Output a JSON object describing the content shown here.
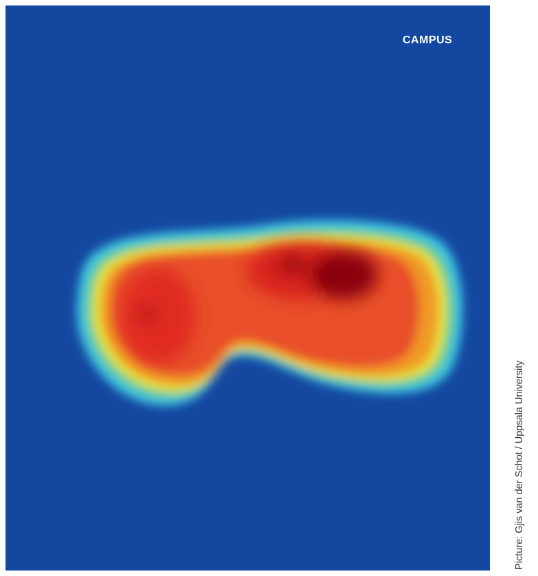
{
  "header": {
    "section": "CAMPUS"
  },
  "credit": "Picture: Gjis van der Schot / Uppsala University"
}
